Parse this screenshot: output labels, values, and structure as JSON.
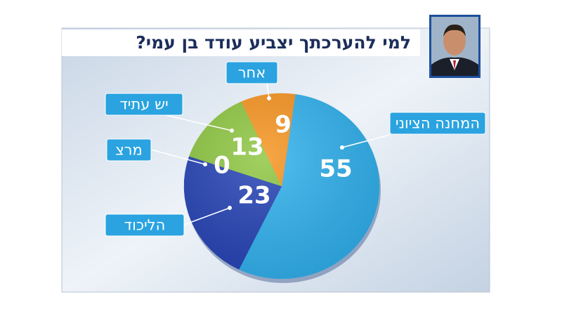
{
  "chart_data": {
    "type": "pie",
    "title": "למי להערכתך יצביע עודד בן עמי?",
    "categories": [
      "המחנה הציוני",
      "הליכוד",
      "מרצ",
      "יש עתיד",
      "אחר"
    ],
    "values": [
      55,
      23,
      0,
      13,
      9
    ],
    "colors": [
      "#2fb1ee",
      "#2341b5",
      "#4f8f2a",
      "#8dc63f",
      "#f7931e"
    ]
  }
}
